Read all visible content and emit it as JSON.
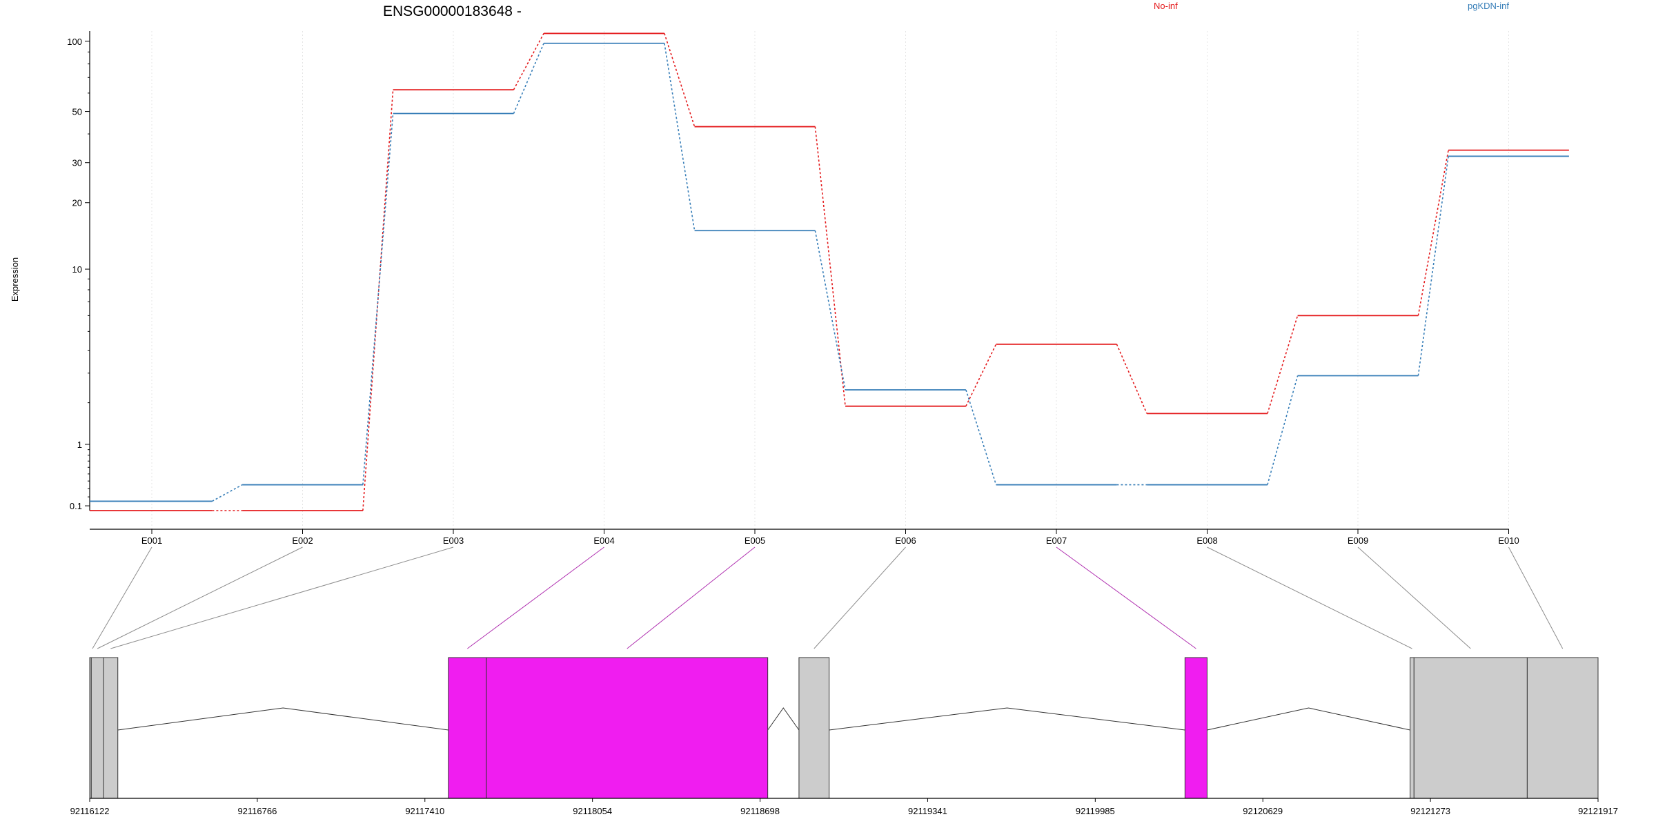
{
  "chart_data": {
    "type": "line",
    "title": "ENSG00000183648 -",
    "ylabel": "Expression",
    "xlabel": "",
    "y_scale": "log (x+1)",
    "y_ticks": [
      0.1,
      1,
      10,
      20,
      30,
      50,
      100
    ],
    "y_tick_labels": [
      "0.1",
      "1",
      "10",
      "20",
      "30",
      "50",
      "100"
    ],
    "categories": [
      "E001",
      "E002",
      "E003",
      "E004",
      "E005",
      "E006",
      "E007",
      "E008",
      "E009",
      "E010"
    ],
    "series": [
      {
        "name": "No-inf",
        "color": "#e41a1c",
        "values": [
          0.05,
          0.05,
          62,
          108,
          43,
          1.9,
          4.3,
          1.7,
          6.0,
          34
        ]
      },
      {
        "name": "pgKDN-inf",
        "color": "#377eb8",
        "values": [
          0.15,
          0.35,
          49,
          98,
          15,
          2.4,
          0.35,
          0.35,
          2.9,
          32
        ]
      }
    ],
    "legend_position": "top-right",
    "grid": "vertical dotted",
    "gene_model": {
      "coord_ticks": [
        "92116122",
        "92116766",
        "92117410",
        "92118054",
        "92118698",
        "92119341",
        "92119985",
        "92120629",
        "92121273",
        "92121917"
      ],
      "coord_start": 92116122,
      "coord_end": 92121917,
      "exon_bins": [
        {
          "id": "E001",
          "start": 92116122,
          "end": 92116128,
          "significant": false
        },
        {
          "id": "E002",
          "start": 92116128,
          "end": 92116175,
          "significant": false
        },
        {
          "id": "E003",
          "start": 92116175,
          "end": 92116230,
          "significant": false
        },
        {
          "id": "E004",
          "start": 92117500,
          "end": 92117646,
          "significant": true
        },
        {
          "id": "E005",
          "start": 92117646,
          "end": 92118727,
          "significant": true
        },
        {
          "id": "E006",
          "start": 92118847,
          "end": 92118963,
          "significant": false
        },
        {
          "id": "E007",
          "start": 92120330,
          "end": 92120415,
          "significant": true
        },
        {
          "id": "E008",
          "start": 92121195,
          "end": 92121210,
          "significant": false
        },
        {
          "id": "E009",
          "start": 92121210,
          "end": 92121645,
          "significant": false
        },
        {
          "id": "E010",
          "start": 92121645,
          "end": 92121917,
          "significant": false
        }
      ],
      "introns": [
        {
          "start": 92116230,
          "end": 92117500
        },
        {
          "start": 92118727,
          "end": 92118847
        },
        {
          "start": 92118963,
          "end": 92120330
        },
        {
          "start": 92120415,
          "end": 92121195
        }
      ],
      "colors": {
        "significant": "#f01df0",
        "normal": "#cccccc"
      }
    }
  }
}
